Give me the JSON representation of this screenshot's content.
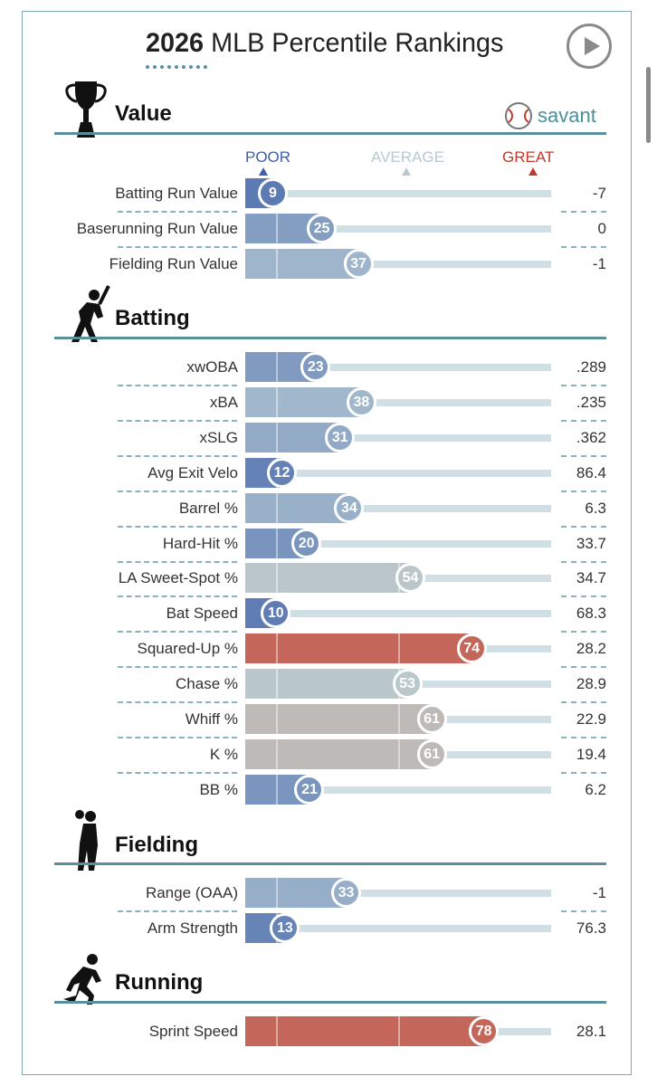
{
  "header": {
    "title_year": "2026",
    "title_rest": "MLB Percentile Rankings",
    "play_button": "play-icon"
  },
  "brand": {
    "name": "savant",
    "icon": "baseball-icon"
  },
  "legend": {
    "poor": "POOR",
    "average": "AVERAGE",
    "great": "GREAT"
  },
  "colors": {
    "poor_blue": "#3d5fa8",
    "great_red": "#c4675a",
    "section_line": "#5a8f9b",
    "track": "#cfdfe3"
  },
  "chart_data": {
    "type": "bar",
    "title": "2026 MLB Percentile Rankings",
    "xlim": [
      0,
      100
    ],
    "groups": [
      {
        "section": "Value",
        "icon": "trophy-icon",
        "metrics": [
          {
            "label": "Batting Run Value",
            "percentile": 9,
            "value": "-7"
          },
          {
            "label": "Baserunning Run Value",
            "percentile": 25,
            "value": "0"
          },
          {
            "label": "Fielding Run Value",
            "percentile": 37,
            "value": "-1"
          }
        ]
      },
      {
        "section": "Batting",
        "icon": "batter-icon",
        "metrics": [
          {
            "label": "xwOBA",
            "percentile": 23,
            "value": ".289"
          },
          {
            "label": "xBA",
            "percentile": 38,
            "value": ".235"
          },
          {
            "label": "xSLG",
            "percentile": 31,
            "value": ".362"
          },
          {
            "label": "Avg Exit Velo",
            "percentile": 12,
            "value": "86.4"
          },
          {
            "label": "Barrel %",
            "percentile": 34,
            "value": "6.3"
          },
          {
            "label": "Hard-Hit %",
            "percentile": 20,
            "value": "33.7"
          },
          {
            "label": "LA Sweet-Spot %",
            "percentile": 54,
            "value": "34.7"
          },
          {
            "label": "Bat Speed",
            "percentile": 10,
            "value": "68.3"
          },
          {
            "label": "Squared-Up %",
            "percentile": 74,
            "value": "28.2"
          },
          {
            "label": "Chase %",
            "percentile": 53,
            "value": "28.9"
          },
          {
            "label": "Whiff %",
            "percentile": 61,
            "value": "22.9"
          },
          {
            "label": "K %",
            "percentile": 61,
            "value": "19.4"
          },
          {
            "label": "BB %",
            "percentile": 21,
            "value": "6.2"
          }
        ]
      },
      {
        "section": "Fielding",
        "icon": "fielder-icon",
        "metrics": [
          {
            "label": "Range (OAA)",
            "percentile": 33,
            "value": "-1"
          },
          {
            "label": "Arm Strength",
            "percentile": 13,
            "value": "76.3"
          }
        ]
      },
      {
        "section": "Running",
        "icon": "runner-icon",
        "metrics": [
          {
            "label": "Sprint Speed",
            "percentile": 78,
            "value": "28.1"
          }
        ]
      }
    ]
  }
}
